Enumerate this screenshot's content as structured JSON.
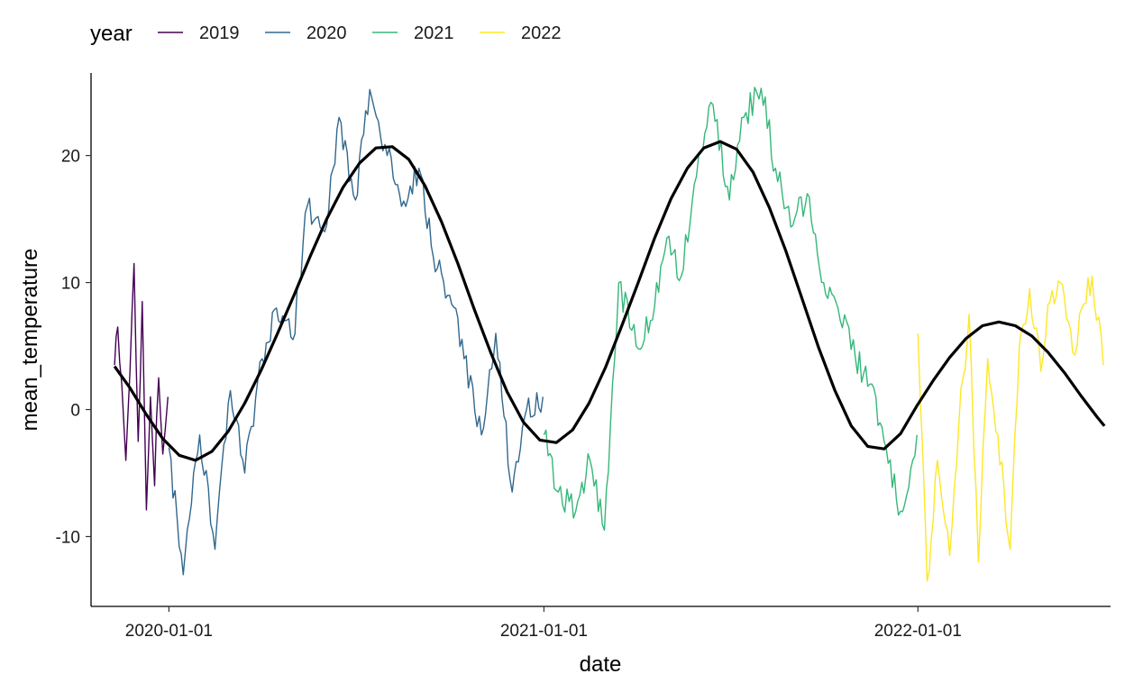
{
  "chart_data": {
    "type": "line",
    "xlabel": "date",
    "ylabel": "mean_temperature",
    "xlim": [
      "2019-10-17",
      "2022-07-08"
    ],
    "ylim": [
      -15.5,
      26.5
    ],
    "x_ticks": [
      "2020-01-01",
      "2021-01-01",
      "2022-01-01"
    ],
    "y_ticks": [
      -10,
      0,
      10,
      20
    ],
    "grid": false,
    "legend": {
      "title": "year",
      "position": "top-left",
      "entries": [
        "2019",
        "2020",
        "2021",
        "2022"
      ]
    },
    "series": [
      {
        "name": "2019",
        "color": "#440154",
        "x": [
          "2019-11-09",
          "2019-11-12",
          "2019-11-16",
          "2019-11-20",
          "2019-11-24",
          "2019-11-28",
          "2019-12-02",
          "2019-12-06",
          "2019-12-10",
          "2019-12-14",
          "2019-12-18",
          "2019-12-22",
          "2019-12-26",
          "2019-12-31"
        ],
        "values": [
          3.5,
          6.5,
          2.0,
          -4.0,
          3.0,
          11.5,
          -2.5,
          8.5,
          -7.9,
          1.0,
          -6.0,
          2.5,
          -3.5,
          1.0
        ]
      },
      {
        "name": "2020",
        "color": "#31688e",
        "x": [
          "2020-01-01",
          "2020-01-15",
          "2020-01-31",
          "2020-02-15",
          "2020-03-01",
          "2020-03-15",
          "2020-04-01",
          "2020-04-15",
          "2020-05-01",
          "2020-05-15",
          "2020-06-01",
          "2020-06-15",
          "2020-07-01",
          "2020-07-15",
          "2020-08-01",
          "2020-08-15",
          "2020-09-01",
          "2020-09-15",
          "2020-10-01",
          "2020-10-15",
          "2020-11-01",
          "2020-11-15",
          "2020-12-01",
          "2020-12-15",
          "2020-12-31"
        ],
        "values": [
          -3.0,
          -13.0,
          -2.0,
          -11.0,
          1.5,
          -5.0,
          4.0,
          8.0,
          5.5,
          16.0,
          14.0,
          23.0,
          16.5,
          25.2,
          20.0,
          16.0,
          19.0,
          12.0,
          9.0,
          4.0,
          -2.0,
          6.0,
          -6.5,
          0.0,
          1.0
        ]
      },
      {
        "name": "2021",
        "color": "#35b779",
        "x": [
          "2021-01-01",
          "2021-01-15",
          "2021-02-01",
          "2021-02-15",
          "2021-03-01",
          "2021-03-15",
          "2021-04-01",
          "2021-04-15",
          "2021-05-01",
          "2021-05-15",
          "2021-06-01",
          "2021-06-15",
          "2021-07-01",
          "2021-07-15",
          "2021-08-01",
          "2021-08-15",
          "2021-09-01",
          "2021-09-15",
          "2021-10-01",
          "2021-10-15",
          "2021-11-01",
          "2021-11-15",
          "2021-12-01",
          "2021-12-15",
          "2021-12-31"
        ],
        "values": [
          -2.0,
          -6.5,
          -8.0,
          -4.0,
          -9.5,
          10.0,
          5.0,
          7.0,
          13.5,
          10.5,
          20.0,
          24.0,
          16.5,
          23.0,
          25.3,
          19.0,
          14.5,
          17.0,
          10.0,
          8.0,
          4.0,
          2.0,
          -3.0,
          -8.0,
          -2.0
        ]
      },
      {
        "name": "2022",
        "color": "#fde725",
        "x": [
          "2022-01-01",
          "2022-01-10",
          "2022-01-20",
          "2022-02-01",
          "2022-02-10",
          "2022-02-20",
          "2022-03-01",
          "2022-03-10",
          "2022-03-20",
          "2022-04-01",
          "2022-04-10",
          "2022-04-20",
          "2022-05-01",
          "2022-05-10",
          "2022-05-20",
          "2022-06-01",
          "2022-06-10",
          "2022-06-20",
          "2022-07-01"
        ],
        "values": [
          6.0,
          -13.5,
          -4.0,
          -11.5,
          -1.0,
          7.5,
          -12.0,
          4.0,
          -2.0,
          -11.0,
          5.0,
          9.5,
          3.0,
          8.5,
          10.0,
          4.5,
          8.0,
          10.5,
          3.5
        ]
      },
      {
        "name": "",
        "color": "#000000",
        "type": "smooth",
        "x": [
          "2019-11-09",
          "2019-11-24",
          "2019-12-10",
          "2019-12-26",
          "2020-01-11",
          "2020-01-27",
          "2020-02-12",
          "2020-02-28",
          "2020-03-15",
          "2020-03-31",
          "2020-04-16",
          "2020-05-02",
          "2020-05-18",
          "2020-06-03",
          "2020-06-19",
          "2020-07-05",
          "2020-07-21",
          "2020-08-06",
          "2020-08-22",
          "2020-09-07",
          "2020-09-23",
          "2020-10-09",
          "2020-10-25",
          "2020-11-10",
          "2020-11-26",
          "2020-12-12",
          "2020-12-28",
          "2021-01-13",
          "2021-01-29",
          "2021-02-14",
          "2021-03-02",
          "2021-03-18",
          "2021-04-03",
          "2021-04-19",
          "2021-05-05",
          "2021-05-21",
          "2021-06-06",
          "2021-06-22",
          "2021-07-08",
          "2021-07-24",
          "2021-08-09",
          "2021-08-25",
          "2021-09-10",
          "2021-09-26",
          "2021-10-12",
          "2021-10-28",
          "2021-11-13",
          "2021-11-29",
          "2021-12-15",
          "2021-12-31",
          "2022-01-16",
          "2022-02-01",
          "2022-02-17",
          "2022-03-05",
          "2022-03-21",
          "2022-04-06",
          "2022-04-22",
          "2022-05-08",
          "2022-05-24",
          "2022-06-09",
          "2022-06-25",
          "2022-07-02"
        ],
        "values": [
          3.4,
          1.7,
          -0.4,
          -2.3,
          -3.6,
          -4.0,
          -3.3,
          -1.7,
          0.5,
          3.1,
          6.0,
          9.0,
          12.1,
          15.0,
          17.5,
          19.4,
          20.6,
          20.7,
          19.7,
          17.6,
          14.8,
          11.5,
          7.9,
          4.5,
          1.4,
          -1.0,
          -2.4,
          -2.6,
          -1.6,
          0.5,
          3.3,
          6.6,
          10.0,
          13.5,
          16.6,
          19.0,
          20.6,
          21.1,
          20.5,
          18.7,
          15.9,
          12.5,
          8.7,
          4.9,
          1.5,
          -1.3,
          -2.9,
          -3.1,
          -1.9,
          0.3,
          2.3,
          4.1,
          5.6,
          6.6,
          6.9,
          6.6,
          5.8,
          4.5,
          2.9,
          1.1,
          -0.6,
          -1.3
        ]
      }
    ]
  }
}
